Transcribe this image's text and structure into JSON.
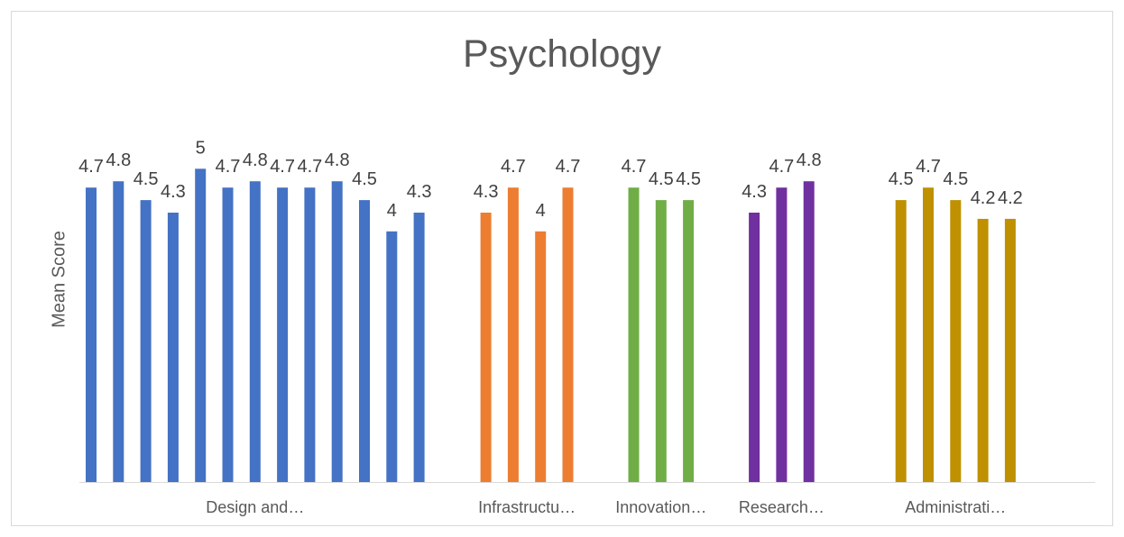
{
  "chart_data": {
    "type": "bar",
    "title": "Psychology",
    "xlabel": "",
    "ylabel": "Mean Score",
    "ylim": [
      0,
      5
    ],
    "grid": false,
    "legend": "none",
    "groups": [
      {
        "label": "Design and…",
        "color": "#4472c4",
        "values": [
          4.7,
          4.8,
          4.5,
          4.3,
          5,
          4.7,
          4.8,
          4.7,
          4.7,
          4.8,
          4.5,
          4,
          4.3
        ]
      },
      {
        "label": "Infrastructu…",
        "color": "#ed7d31",
        "values": [
          4.3,
          4.7,
          4,
          4.7
        ]
      },
      {
        "label": "Innovation…",
        "color": "#70ad47",
        "values": [
          4.7,
          4.5,
          4.5
        ]
      },
      {
        "label": "Research…",
        "color": "#7030a0",
        "values": [
          4.3,
          4.7,
          4.8
        ]
      },
      {
        "label": "Administrati…",
        "color": "#bf9000",
        "values": [
          4.5,
          4.7,
          4.5,
          4.2,
          4.2
        ]
      }
    ]
  }
}
